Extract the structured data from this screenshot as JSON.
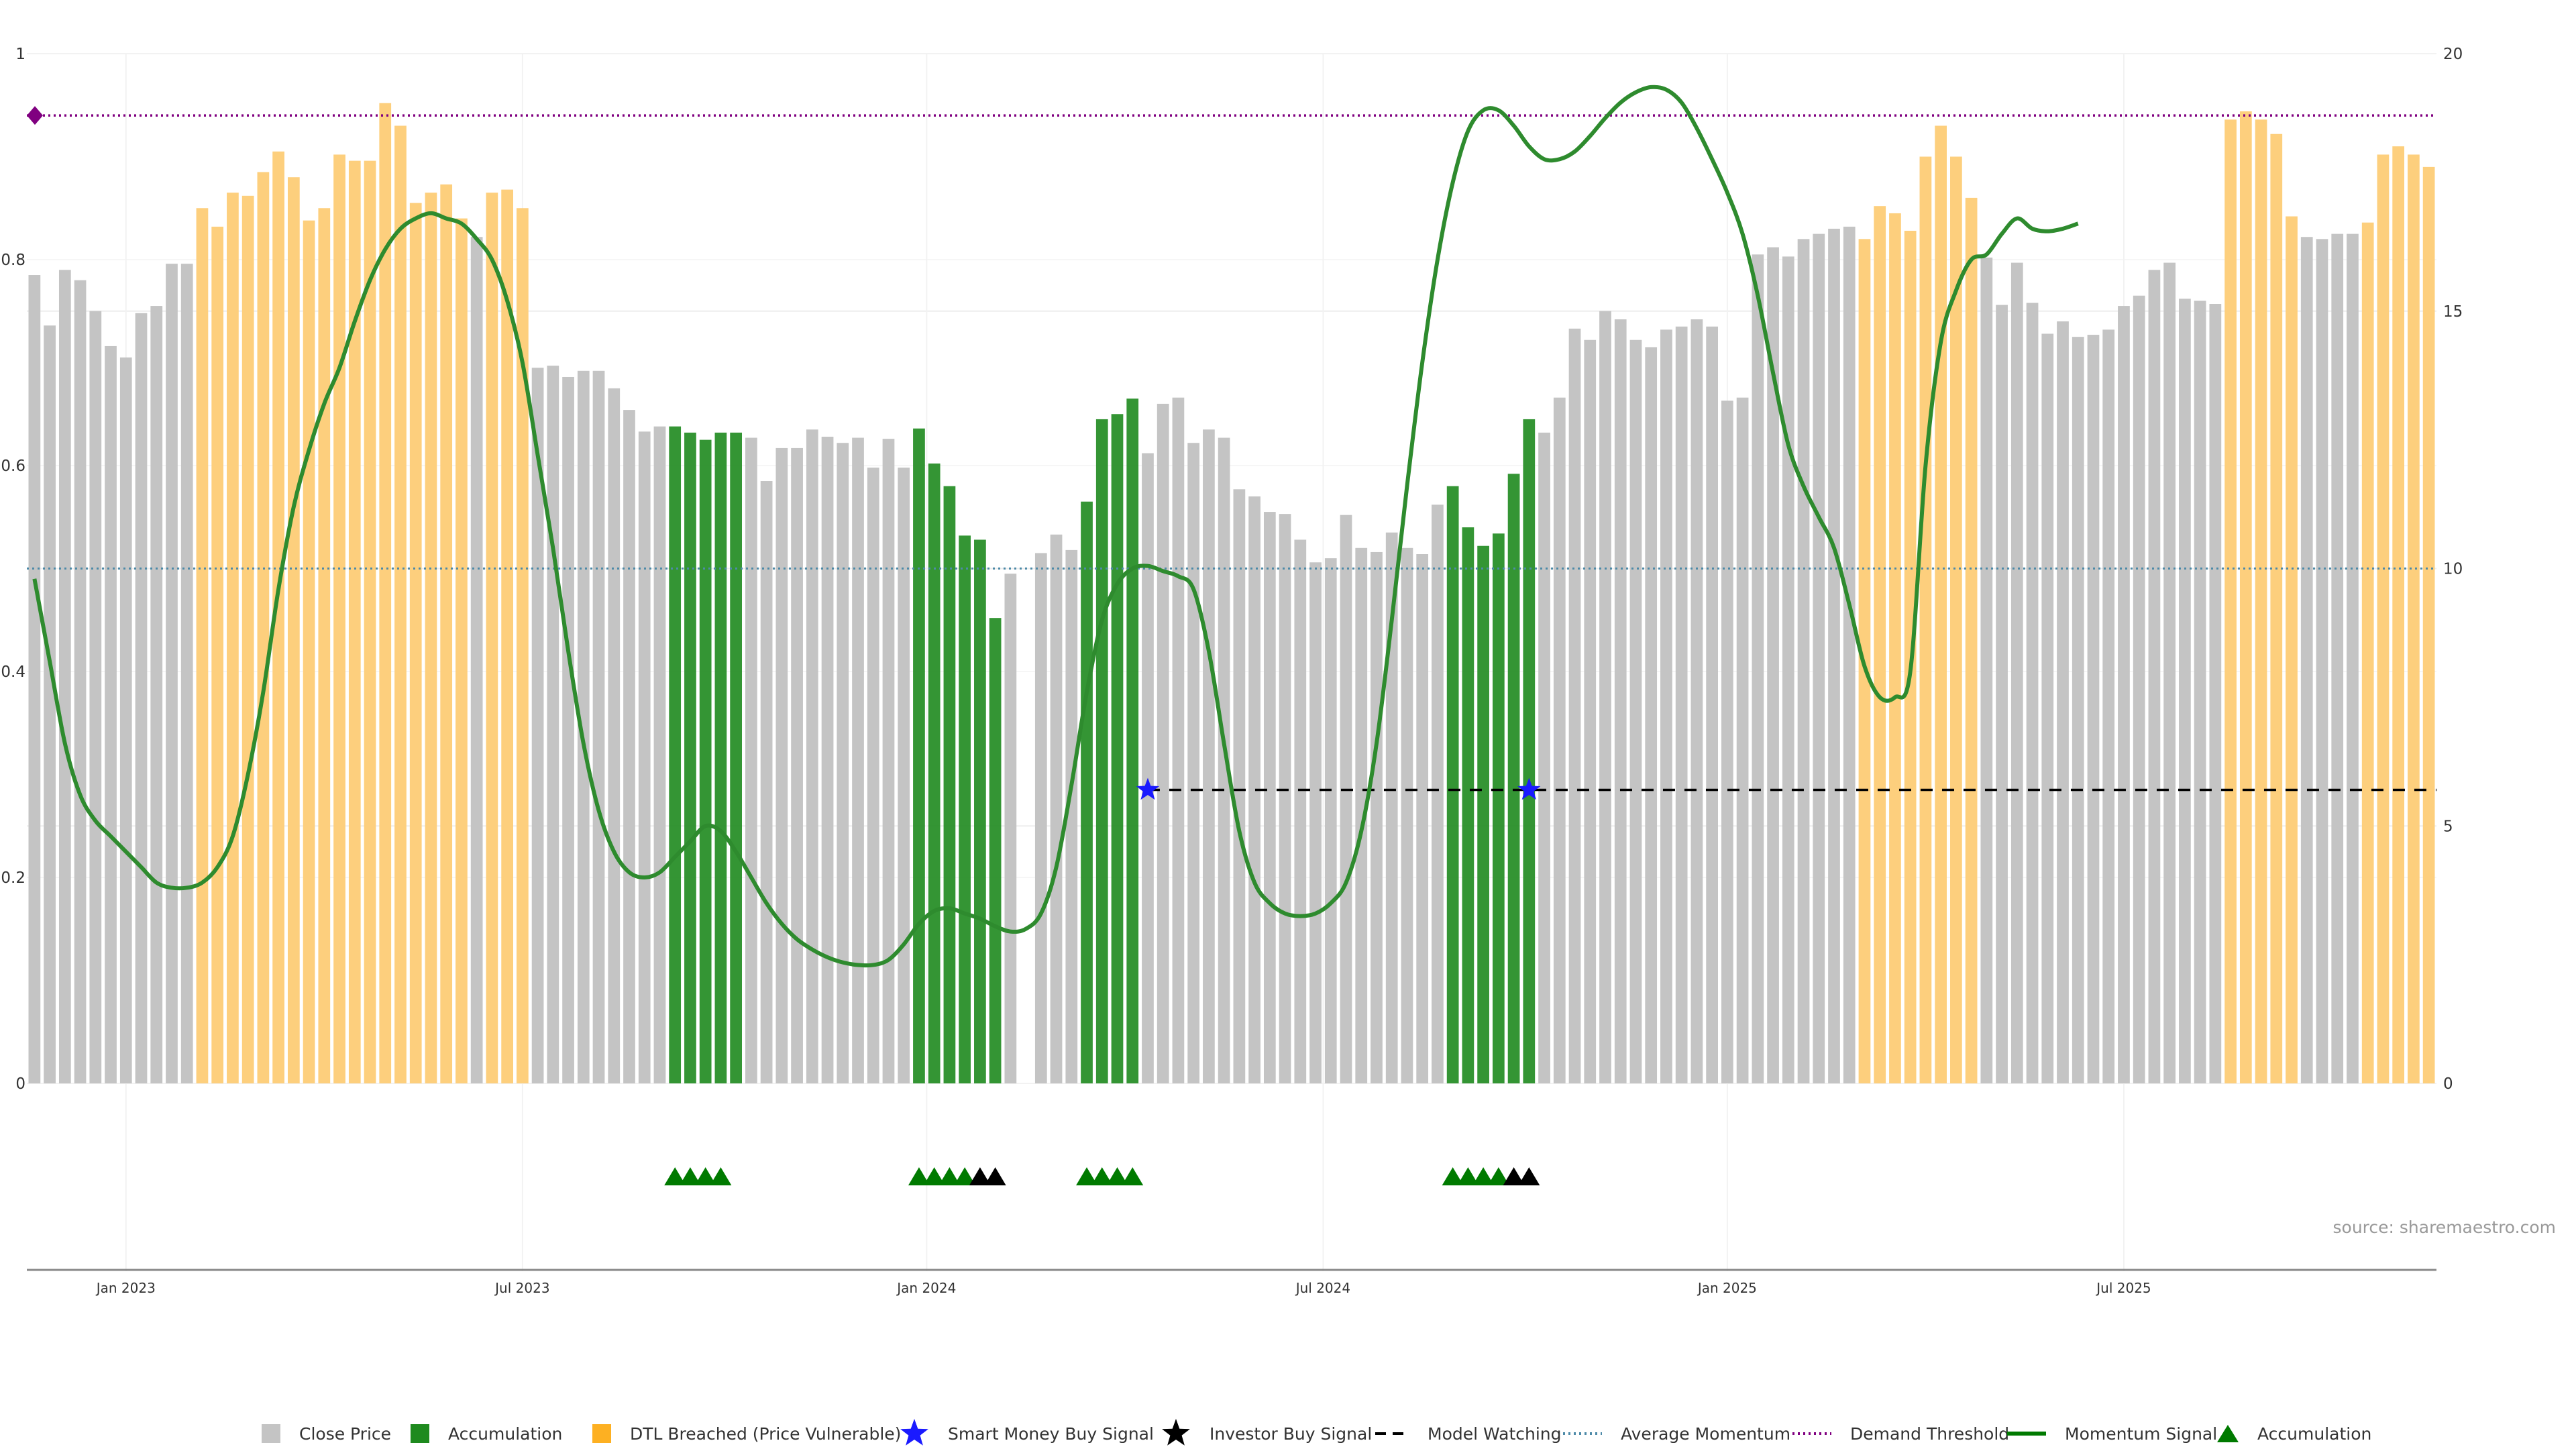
{
  "chart_data": {
    "type": "bar",
    "source": "source: sharemaestro.com",
    "colors": {
      "close": "#c4c4c4",
      "accumulation": "#1e8a1e",
      "dtl": "#fdcf7d",
      "smart_star": "#1a1aff",
      "investor_star": "#000000",
      "watching": "#000000",
      "avg_momentum": "#4d8aa8",
      "demand": "#800080",
      "momentum": "#2e8b2e",
      "triangle": "#007a00"
    },
    "y_left": {
      "ylim": [
        0,
        1
      ],
      "ticks": [
        "0",
        "0.2",
        "0.4",
        "0.6",
        "0.8",
        "1"
      ]
    },
    "y_right": {
      "ylim": [
        0,
        20
      ],
      "ticks": [
        "0",
        "5",
        "10",
        "15",
        "20"
      ]
    },
    "x_ticks": [
      "Jan 2023",
      "Jul 2023",
      "Jan 2024",
      "Jul 2024",
      "Jan 2025",
      "Jul 2025"
    ],
    "bars": {
      "values": [
        0.785,
        0.736,
        0.79,
        0.78,
        0.75,
        0.716,
        0.705,
        0.748,
        0.755,
        0.796,
        0.796,
        0.85,
        0.832,
        0.865,
        0.862,
        0.885,
        0.905,
        0.88,
        0.838,
        0.85,
        0.902,
        0.896,
        0.896,
        0.952,
        0.93,
        0.855,
        0.865,
        0.873,
        0.84,
        0.822,
        0.865,
        0.868,
        0.85,
        0.695,
        0.697,
        0.686,
        0.692,
        0.692,
        0.675,
        0.654,
        0.633,
        0.638,
        0.638,
        0.632,
        0.625,
        0.632,
        0.632,
        0.627,
        0.585,
        0.617,
        0.617,
        0.635,
        0.628,
        0.622,
        0.627,
        0.598,
        0.626,
        0.598,
        0.636,
        0.602,
        0.58,
        0.532,
        0.528,
        0.452,
        0.495,
        0,
        0.515,
        0.533,
        0.518,
        0.565,
        0.645,
        0.65,
        0.665,
        0.612,
        0.66,
        0.666,
        0.622,
        0.635,
        0.627,
        0.577,
        0.57,
        0.555,
        0.553,
        0.528,
        0.506,
        0.51,
        0.552,
        0.52,
        0.516,
        0.535,
        0.52,
        0.514,
        0.562,
        0.58,
        0.54,
        0.522,
        0.534,
        0.592,
        0.645,
        0.632,
        0.666,
        0.733,
        0.722,
        0.75,
        0.742,
        0.722,
        0.715,
        0.732,
        0.735,
        0.742,
        0.735,
        0.663,
        0.666,
        0.805,
        0.812,
        0.803,
        0.82,
        0.825,
        0.83,
        0.832,
        0.82,
        0.852,
        0.845,
        0.828,
        0.9,
        0.93,
        0.9,
        0.86,
        0.802,
        0.756,
        0.797,
        0.758,
        0.728,
        0.74,
        0.725,
        0.727,
        0.732,
        0.755,
        0.765,
        0.79,
        0.797,
        0.762,
        0.76,
        0.757,
        0.936,
        0.944,
        0.936,
        0.922,
        0.842,
        0.822,
        0.82,
        0.825,
        0.825,
        0.836,
        0.902,
        0.91,
        0.902,
        0.89
      ],
      "types": [
        "c",
        "c",
        "c",
        "c",
        "c",
        "c",
        "c",
        "c",
        "c",
        "c",
        "c",
        "d",
        "d",
        "d",
        "d",
        "d",
        "d",
        "d",
        "d",
        "d",
        "d",
        "d",
        "d",
        "d",
        "d",
        "d",
        "d",
        "d",
        "d",
        "c",
        "d",
        "d",
        "d",
        "c",
        "c",
        "c",
        "c",
        "c",
        "c",
        "c",
        "c",
        "c",
        "a",
        "a",
        "a",
        "a",
        "a",
        "c",
        "c",
        "c",
        "c",
        "c",
        "c",
        "c",
        "c",
        "c",
        "c",
        "c",
        "a",
        "a",
        "a",
        "a",
        "a",
        "a",
        "c",
        "c",
        "c",
        "c",
        "c",
        "a",
        "a",
        "a",
        "a",
        "c",
        "c",
        "c",
        "c",
        "c",
        "c",
        "c",
        "c",
        "c",
        "c",
        "c",
        "c",
        "c",
        "c",
        "c",
        "c",
        "c",
        "c",
        "c",
        "c",
        "a",
        "a",
        "a",
        "a",
        "a",
        "a",
        "c",
        "c",
        "c",
        "c",
        "c",
        "c",
        "c",
        "c",
        "c",
        "c",
        "c",
        "c",
        "c",
        "c",
        "c",
        "c",
        "c",
        "c",
        "c",
        "c",
        "c",
        "d",
        "d",
        "d",
        "d",
        "d",
        "d",
        "d",
        "d",
        "c",
        "c",
        "c",
        "c",
        "c",
        "c",
        "c",
        "c",
        "c",
        "c",
        "c",
        "c",
        "c",
        "c",
        "c",
        "c",
        "d",
        "d",
        "d",
        "d",
        "d",
        "c",
        "c",
        "c",
        "c",
        "d",
        "d",
        "d",
        "d",
        "d"
      ]
    },
    "momentum": [
      [
        0,
        9.8
      ],
      [
        1,
        8.2
      ],
      [
        2,
        6.6
      ],
      [
        3,
        5.6
      ],
      [
        4,
        5.1
      ],
      [
        5,
        4.8
      ],
      [
        6,
        4.5
      ],
      [
        7,
        4.2
      ],
      [
        8,
        3.9
      ],
      [
        9,
        3.8
      ],
      [
        10,
        3.8
      ],
      [
        11,
        3.9
      ],
      [
        12,
        4.2
      ],
      [
        13,
        4.8
      ],
      [
        14,
        6.0
      ],
      [
        15,
        7.6
      ],
      [
        16,
        9.6
      ],
      [
        17,
        11.2
      ],
      [
        18,
        12.3
      ],
      [
        19,
        13.2
      ],
      [
        20,
        13.9
      ],
      [
        21,
        14.8
      ],
      [
        22,
        15.6
      ],
      [
        23,
        16.2
      ],
      [
        24,
        16.6
      ],
      [
        25,
        16.8
      ],
      [
        26,
        16.9
      ],
      [
        27,
        16.8
      ],
      [
        28,
        16.7
      ],
      [
        29,
        16.4
      ],
      [
        30,
        16.0
      ],
      [
        31,
        15.2
      ],
      [
        32,
        14.0
      ],
      [
        33,
        12.2
      ],
      [
        34,
        10.4
      ],
      [
        35,
        8.4
      ],
      [
        36,
        6.6
      ],
      [
        37,
        5.3
      ],
      [
        38,
        4.5
      ],
      [
        39,
        4.1
      ],
      [
        40,
        4.0
      ],
      [
        41,
        4.1
      ],
      [
        42,
        4.4
      ],
      [
        43,
        4.7
      ],
      [
        44,
        5.0
      ],
      [
        45,
        4.9
      ],
      [
        46,
        4.5
      ],
      [
        47,
        4.0
      ],
      [
        48,
        3.5
      ],
      [
        49,
        3.1
      ],
      [
        50,
        2.8
      ],
      [
        51,
        2.6
      ],
      [
        52,
        2.45
      ],
      [
        53,
        2.35
      ],
      [
        54,
        2.3
      ],
      [
        55,
        2.3
      ],
      [
        56,
        2.4
      ],
      [
        57,
        2.7
      ],
      [
        58,
        3.1
      ],
      [
        59,
        3.35
      ],
      [
        60,
        3.4
      ],
      [
        61,
        3.3
      ],
      [
        62,
        3.2
      ],
      [
        63,
        3.05
      ],
      [
        64,
        2.95
      ],
      [
        65,
        3.0
      ],
      [
        66,
        3.3
      ],
      [
        67,
        4.2
      ],
      [
        68,
        5.8
      ],
      [
        69,
        7.6
      ],
      [
        70,
        9.0
      ],
      [
        71,
        9.7
      ],
      [
        72,
        10.0
      ],
      [
        73,
        10.05
      ],
      [
        74,
        9.95
      ],
      [
        75,
        9.85
      ],
      [
        76,
        9.6
      ],
      [
        77,
        8.4
      ],
      [
        78,
        6.6
      ],
      [
        79,
        4.9
      ],
      [
        80,
        3.9
      ],
      [
        81,
        3.5
      ],
      [
        82,
        3.3
      ],
      [
        83,
        3.25
      ],
      [
        84,
        3.3
      ],
      [
        85,
        3.5
      ],
      [
        86,
        3.9
      ],
      [
        87,
        4.9
      ],
      [
        88,
        6.6
      ],
      [
        89,
        9.0
      ],
      [
        90,
        11.6
      ],
      [
        91,
        14.0
      ],
      [
        92,
        16.0
      ],
      [
        93,
        17.5
      ],
      [
        94,
        18.5
      ],
      [
        95,
        18.9
      ],
      [
        96,
        18.9
      ],
      [
        97,
        18.6
      ],
      [
        98,
        18.2
      ],
      [
        99,
        17.95
      ],
      [
        100,
        17.95
      ],
      [
        101,
        18.1
      ],
      [
        102,
        18.4
      ],
      [
        103,
        18.75
      ],
      [
        104,
        19.05
      ],
      [
        105,
        19.25
      ],
      [
        106,
        19.35
      ],
      [
        107,
        19.3
      ],
      [
        108,
        19.05
      ],
      [
        109,
        18.55
      ],
      [
        110,
        17.95
      ],
      [
        111,
        17.3
      ],
      [
        112,
        16.5
      ],
      [
        113,
        15.3
      ],
      [
        114,
        13.8
      ],
      [
        115,
        12.4
      ],
      [
        116,
        11.6
      ],
      [
        117,
        11.0
      ],
      [
        118,
        10.4
      ],
      [
        119,
        9.3
      ],
      [
        120,
        8.1
      ],
      [
        121,
        7.5
      ],
      [
        122,
        7.5
      ],
      [
        123,
        8.0
      ],
      [
        124,
        12.0
      ],
      [
        125,
        14.4
      ],
      [
        126,
        15.4
      ],
      [
        127,
        16.0
      ],
      [
        128,
        16.1
      ],
      [
        129,
        16.5
      ],
      [
        130,
        16.8
      ],
      [
        131,
        16.6
      ],
      [
        132,
        16.55
      ],
      [
        133,
        16.6
      ],
      [
        134,
        16.7
      ]
    ],
    "reference_lines": {
      "average_momentum": 10.0,
      "demand_threshold": 18.8,
      "model_watching": 5.7
    },
    "signals": {
      "smart_money_buy": [
        {
          "bar": 73,
          "value": 5.7
        },
        {
          "bar": 98,
          "value": 5.7
        }
      ],
      "investor_buy": [],
      "demand_marker": {
        "bar": 0,
        "value": 18.8
      }
    },
    "triangles": {
      "green": [
        42,
        43,
        44,
        45,
        58,
        59,
        60,
        61,
        69,
        70,
        71,
        72,
        93,
        94,
        95,
        96
      ],
      "black": [
        62,
        63,
        97,
        98
      ]
    },
    "legend": [
      {
        "label": "Close Price",
        "icon": "square",
        "color": "#c4c4c4"
      },
      {
        "label": "Accumulation",
        "icon": "square",
        "color": "#1e8a1e"
      },
      {
        "label": "DTL Breached (Price Vulnerable)",
        "icon": "square",
        "color": "#fdb022"
      },
      {
        "label": "Smart Money Buy Signal",
        "icon": "star",
        "color": "#1a1aff"
      },
      {
        "label": "Investor Buy Signal",
        "icon": "star",
        "color": "#000000"
      },
      {
        "label": "Model Watching",
        "icon": "dash",
        "color": "#000000"
      },
      {
        "label": "Average Momentum",
        "icon": "dot-line",
        "color": "#4d8aa8"
      },
      {
        "label": "Demand Threshold",
        "icon": "dot-line",
        "color": "#800080"
      },
      {
        "label": "Momentum Signal",
        "icon": "solid-line",
        "color": "#007a00"
      },
      {
        "label": "Accumulation",
        "icon": "triangle",
        "color": "#007a00"
      }
    ]
  }
}
